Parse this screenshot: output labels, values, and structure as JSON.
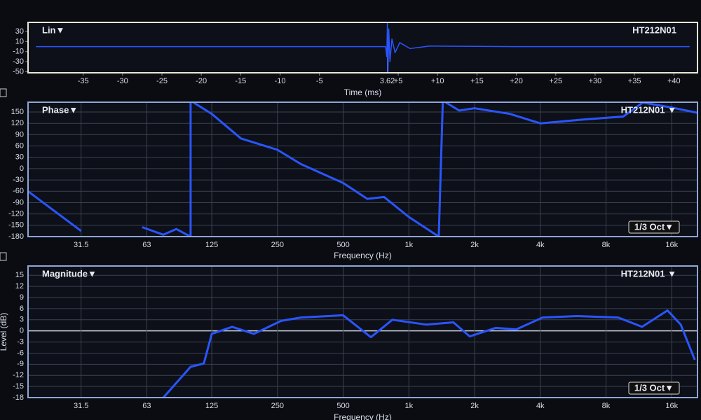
{
  "chart_data": [
    {
      "type": "line",
      "title": "Lin▼",
      "trace_label": "HT212N01",
      "xlabel": "Time (ms)",
      "marker": 3.62,
      "x": [
        -41,
        -30,
        -20,
        -10,
        0,
        3.4,
        3.55,
        3.62,
        3.7,
        3.8,
        3.95,
        4.2,
        4.6,
        5.2,
        6.5,
        9,
        20,
        30,
        42
      ],
      "series": [
        {
          "name": "HT212N01",
          "color": "#2a55ff",
          "values": [
            0,
            0,
            0,
            0,
            0,
            0,
            -20,
            47,
            -50,
            35,
            -30,
            15,
            -12,
            8,
            -4,
            1,
            0,
            0,
            0
          ]
        }
      ],
      "xlim": [
        -42,
        43
      ],
      "ylim": [
        -52,
        48
      ],
      "xticks": [
        -35,
        -30,
        -25,
        -20,
        -15,
        -10,
        -5,
        {
          "value": 5,
          "label": "+5"
        },
        {
          "value": 10,
          "label": "+10"
        },
        {
          "value": 15,
          "label": "+15"
        },
        {
          "value": 20,
          "label": "+20"
        },
        {
          "value": 25,
          "label": "+25"
        },
        {
          "value": 30,
          "label": "+30"
        },
        {
          "value": 35,
          "label": "+35"
        },
        {
          "value": 40,
          "label": "+40"
        }
      ],
      "yticks": [
        30,
        10,
        -10,
        -30,
        -50
      ],
      "grid": false,
      "xscale": "linear"
    },
    {
      "type": "line",
      "title": "Phase▼",
      "trace_label": "HT212N01 ▼",
      "smoothing": "1/3 Oct▼",
      "xlabel": "Frequency (Hz)",
      "x": [
        18,
        31.5,
        40,
        60,
        75,
        86,
        100,
        100,
        125,
        170,
        250,
        320,
        500,
        645,
        770,
        1000,
        1370,
        1430,
        1700,
        2000,
        2900,
        4000,
        6300,
        9600,
        11800,
        16000,
        21000
      ],
      "series": [
        {
          "name": "HT212N01",
          "color": "#2a55ff",
          "values": [
            -60,
            -165,
            null,
            -155,
            -175,
            -160,
            -180,
            180,
            145,
            80,
            50,
            12,
            -38,
            -80,
            -75,
            -128,
            -180,
            180,
            154,
            160,
            145,
            120,
            130,
            138,
            175,
            162,
            148
          ]
        }
      ],
      "xlim": [
        18,
        21000
      ],
      "ylim": [
        -180,
        176
      ],
      "xticks": [
        31.5,
        63,
        125,
        250,
        500,
        {
          "value": 1000,
          "label": "1k"
        },
        {
          "value": 2000,
          "label": "2k"
        },
        {
          "value": 4000,
          "label": "4k"
        },
        {
          "value": 8000,
          "label": "8k"
        },
        {
          "value": 16000,
          "label": "16k"
        }
      ],
      "yticks": [
        150,
        120,
        90,
        60,
        30,
        0,
        -30,
        -60,
        -90,
        -120,
        -150,
        -180
      ],
      "grid": true,
      "xscale": "log"
    },
    {
      "type": "line",
      "title": "Magnitude▼",
      "trace_label": "HT212N01 ▼",
      "smoothing": "1/3 Oct▼",
      "xlabel": "Frequency (Hz)",
      "ylabel": "Level (dB)",
      "x": [
        75,
        100,
        115,
        125,
        155,
        195,
        260,
        320,
        500,
        670,
        840,
        1200,
        1600,
        1900,
        2500,
        3100,
        4100,
        5900,
        9100,
        11700,
        15300,
        17600,
        20400
      ],
      "series": [
        {
          "name": "HT212N01",
          "color": "#2a55ff",
          "values": [
            -18,
            -9.7,
            -8.8,
            -0.8,
            1.1,
            -0.8,
            2.7,
            3.6,
            4.2,
            -1.7,
            3,
            1.7,
            2.3,
            -1.5,
            0.8,
            0.4,
            3.6,
            4,
            3.6,
            1.1,
            5.5,
            1.7,
            -7.8
          ]
        }
      ],
      "xlim": [
        18,
        21000
      ],
      "ylim": [
        -18,
        17.5
      ],
      "xticks": [
        31.5,
        63,
        125,
        250,
        500,
        {
          "value": 1000,
          "label": "1k"
        },
        {
          "value": 2000,
          "label": "2k"
        },
        {
          "value": 4000,
          "label": "4k"
        },
        {
          "value": 8000,
          "label": "8k"
        },
        {
          "value": 16000,
          "label": "16k"
        }
      ],
      "yticks": [
        15,
        12,
        9,
        6,
        3,
        0,
        -3,
        -6,
        -9,
        -12,
        -15,
        -18
      ],
      "grid": true,
      "zero_line": true,
      "xscale": "log"
    }
  ]
}
